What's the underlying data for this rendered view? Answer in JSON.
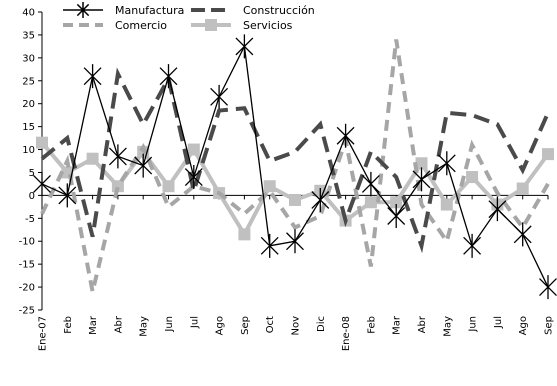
{
  "chart_data": {
    "type": "line",
    "title": "",
    "xlabel": "",
    "ylabel": "",
    "ylim": [
      -25,
      40
    ],
    "yticks": [
      40,
      35,
      30,
      25,
      20,
      15,
      10,
      5,
      0,
      -5,
      -10,
      -15,
      -20,
      -25
    ],
    "grid": false,
    "legend_position": "top",
    "categories": [
      "Ene-07",
      "Feb",
      "Mar",
      "Abr",
      "May",
      "Jun",
      "Jul",
      "Ago",
      "Sep",
      "Oct",
      "Nov",
      "Dic",
      "Ene-08",
      "Feb",
      "Mar",
      "Abr",
      "May",
      "Jun",
      "Jul",
      "Ago",
      "Sep"
    ],
    "series": [
      {
        "name": "Manufactura",
        "color": "#000000",
        "dash": "solid",
        "marker": "star",
        "values": [
          2.5,
          0,
          26,
          8.5,
          6.5,
          26,
          4,
          21.5,
          32.5,
          -11,
          -10,
          -1,
          13,
          2.5,
          -4.5,
          3.5,
          7,
          -11,
          -3,
          -8.5,
          -20
        ]
      },
      {
        "name": "Construcción",
        "color": "#4a4a4a",
        "dash": "long-dash",
        "marker": "none",
        "values": [
          8,
          12.5,
          -9,
          26.5,
          15.5,
          25.5,
          1,
          18.5,
          19,
          7.5,
          9.5,
          15.5,
          -5.5,
          9.5,
          4,
          -11,
          18,
          17.5,
          15.5,
          5.5,
          18
        ]
      },
      {
        "name": "Comercio",
        "color": "#a6a6a6",
        "dash": "dash",
        "marker": "none",
        "values": [
          -4,
          7.5,
          -21,
          2,
          10.5,
          -2.5,
          2,
          0.5,
          -4,
          1,
          -7,
          -4.5,
          12,
          -15.5,
          34,
          -2,
          -10,
          11,
          0.5,
          -7,
          2.5
        ]
      },
      {
        "name": "Servicios",
        "color": "#c0c0c0",
        "dash": "solid",
        "marker": "square",
        "values": [
          11.5,
          5,
          8,
          2,
          9.5,
          2,
          10,
          0.5,
          -8.5,
          2,
          -1,
          1,
          -5.5,
          -1.5,
          -1.5,
          7,
          -2,
          4,
          -2,
          1.5,
          9
        ]
      }
    ]
  }
}
